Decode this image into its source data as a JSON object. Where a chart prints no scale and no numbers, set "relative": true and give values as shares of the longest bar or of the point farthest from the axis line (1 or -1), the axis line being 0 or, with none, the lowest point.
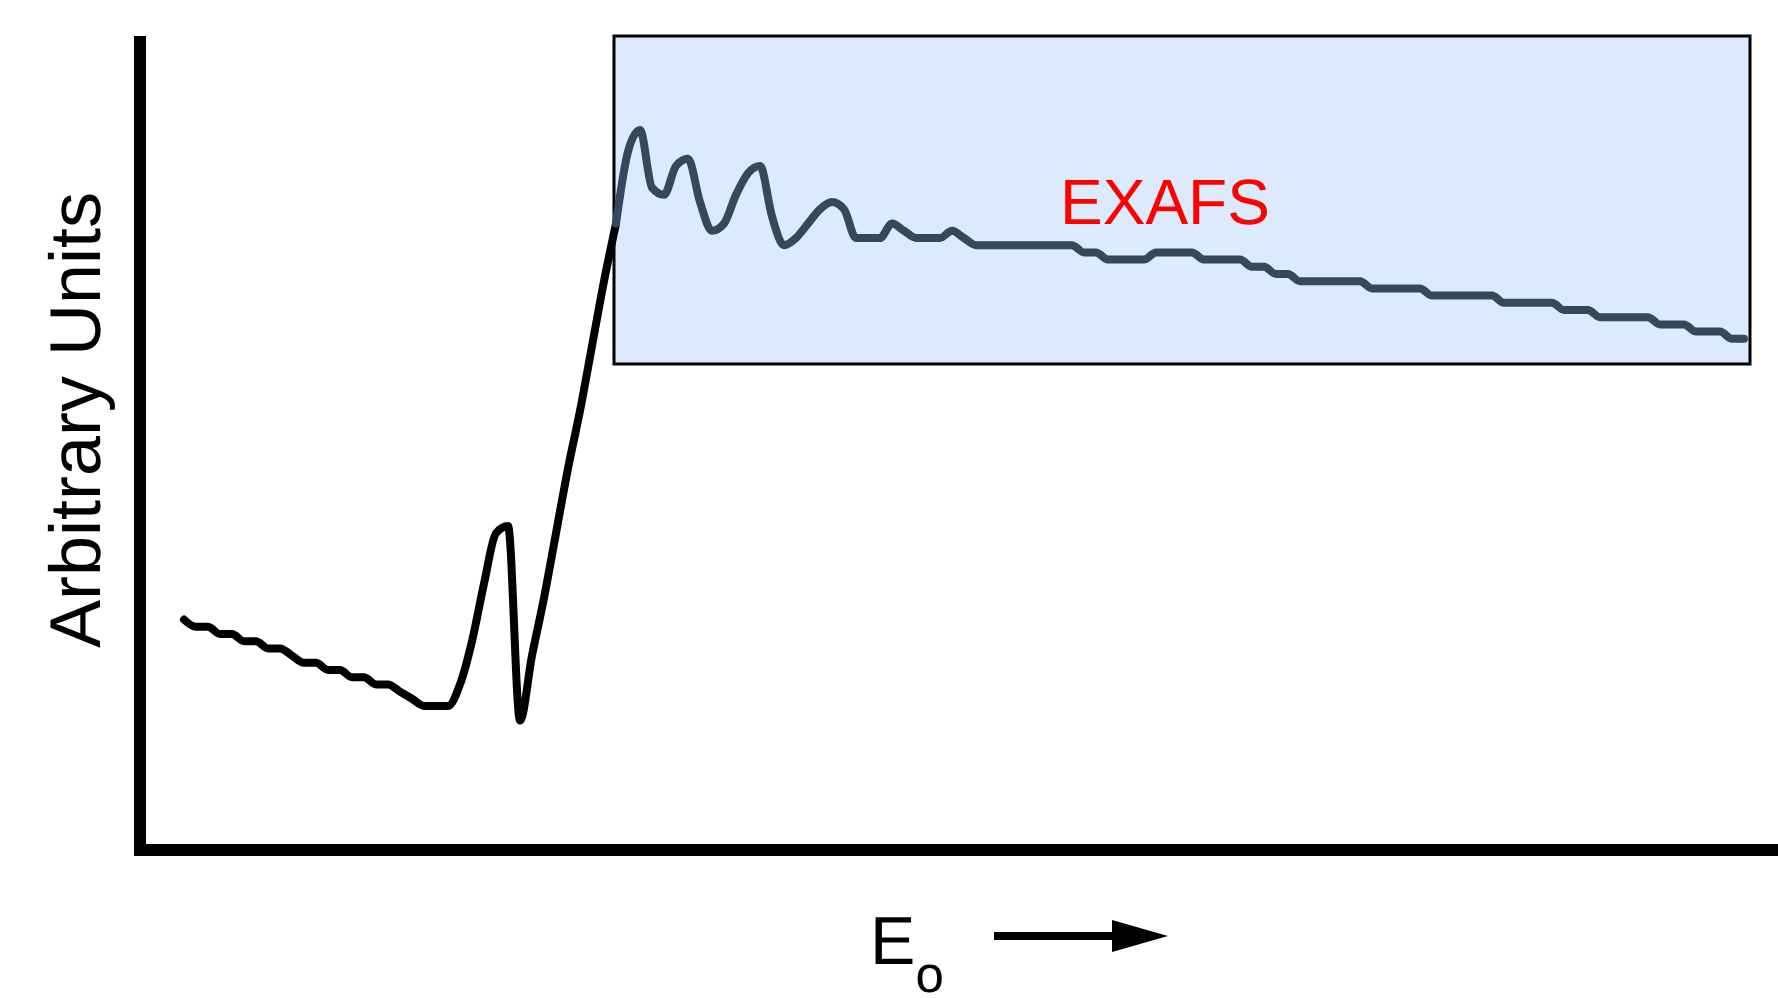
{
  "chart_data": {
    "type": "line",
    "relative": true,
    "xlabel": "E$_{o}$",
    "ylabel": "Arbitrary Units",
    "annotations": [
      "EXAFS"
    ],
    "marker": "none",
    "line_style": "solid",
    "categories": [
      null,
      null,
      null,
      null,
      null,
      null,
      null,
      null,
      null,
      null,
      null,
      null,
      null,
      null,
      null,
      null,
      null,
      null,
      null,
      null,
      null,
      null,
      null,
      null,
      null,
      null,
      null,
      null,
      null,
      null,
      null,
      null,
      null,
      null,
      null,
      null,
      null,
      null,
      null,
      null,
      null,
      null,
      null,
      null,
      null,
      null,
      null,
      null,
      null,
      null,
      null,
      null,
      null,
      null,
      null,
      null,
      null,
      null,
      null,
      null,
      null,
      null,
      null,
      null,
      null,
      null,
      null,
      null,
      null,
      null,
      null,
      null,
      null,
      null,
      null,
      null,
      null,
      null,
      null,
      null,
      null,
      null,
      null,
      null,
      null,
      null,
      null,
      null,
      null,
      null,
      null,
      null,
      null,
      null,
      null,
      null,
      null,
      null,
      null,
      null,
      null,
      null,
      null,
      null,
      null,
      null,
      null,
      null,
      null,
      null,
      null,
      null,
      null,
      null,
      null,
      null,
      null,
      null,
      null,
      null,
      null,
      null,
      null,
      null,
      null,
      null,
      null,
      null,
      null,
      null,
      null
    ],
    "series": [
      {
        "color": "#000000",
        "values": [
          0.32,
          0.31,
          0.31,
          0.3,
          0.3,
          0.29,
          0.29,
          0.28,
          0.28,
          0.27,
          0.26,
          0.26,
          0.25,
          0.25,
          0.24,
          0.24,
          0.23,
          0.23,
          0.22,
          0.21,
          0.2,
          0.2,
          0.2,
          0.23,
          0.29,
          0.37,
          0.44,
          0.45,
          0.18,
          0.27,
          0.35,
          0.44,
          0.53,
          0.61,
          0.7,
          0.79,
          0.87,
          null,
          null,
          null,
          null,
          null,
          null,
          null,
          null,
          null,
          null,
          null,
          null,
          null,
          null,
          null,
          null,
          null,
          null,
          null,
          null,
          null,
          null,
          null,
          null,
          null,
          null,
          null,
          null,
          null,
          null,
          null,
          null,
          null,
          null,
          null,
          null,
          null,
          null,
          null,
          null,
          null,
          null,
          null,
          null,
          null,
          null,
          null,
          null,
          null,
          null,
          null,
          null,
          null,
          null,
          null,
          null,
          null,
          null,
          null,
          null,
          null,
          null,
          null,
          null,
          null,
          null,
          null,
          null,
          null,
          null,
          null,
          null,
          null,
          null,
          null,
          null,
          null,
          null,
          null,
          null,
          null,
          null,
          null,
          null,
          null,
          null,
          null,
          null,
          null,
          null,
          null,
          null,
          null,
          null
        ]
      },
      {
        "color": "#34495e",
        "values": [
          null,
          null,
          null,
          null,
          null,
          null,
          null,
          null,
          null,
          null,
          null,
          null,
          null,
          null,
          null,
          null,
          null,
          null,
          null,
          null,
          null,
          null,
          null,
          null,
          null,
          null,
          null,
          null,
          null,
          null,
          null,
          null,
          null,
          null,
          null,
          null,
          0.87,
          0.97,
          1.0,
          0.92,
          0.91,
          0.95,
          0.96,
          0.9,
          0.86,
          0.87,
          0.91,
          0.94,
          0.95,
          0.88,
          0.84,
          0.85,
          0.87,
          0.89,
          0.9,
          0.89,
          0.85,
          0.85,
          0.85,
          0.87,
          0.86,
          0.85,
          0.85,
          0.85,
          0.86,
          0.85,
          0.84,
          0.84,
          0.84,
          0.84,
          0.84,
          0.84,
          0.84,
          0.84,
          0.84,
          0.83,
          0.83,
          0.82,
          0.82,
          0.82,
          0.82,
          0.83,
          0.83,
          0.83,
          0.83,
          0.82,
          0.82,
          0.82,
          0.82,
          0.81,
          0.81,
          0.8,
          0.8,
          0.79,
          0.79,
          0.79,
          0.79,
          0.79,
          0.79,
          0.78,
          0.78,
          0.78,
          0.78,
          0.78,
          0.77,
          0.77,
          0.77,
          0.77,
          0.77,
          0.77,
          0.76,
          0.76,
          0.76,
          0.76,
          0.76,
          0.75,
          0.75,
          0.75,
          0.74,
          0.74,
          0.74,
          0.74,
          0.74,
          0.73,
          0.73,
          0.73,
          0.72,
          0.72,
          0.72,
          0.71,
          0.71
        ]
      }
    ]
  }
}
